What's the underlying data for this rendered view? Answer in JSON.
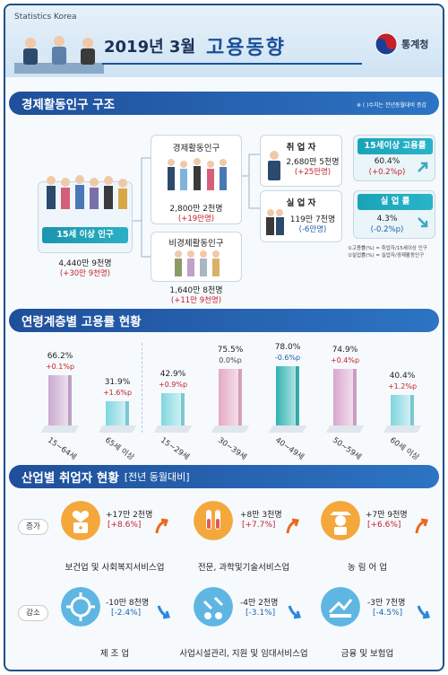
{
  "header": {
    "brand_small": "Statistics Korea",
    "year_month": "2019년 3월",
    "title": "고용동향",
    "agency": "통계청"
  },
  "section1": {
    "title": "경제활동인구 구조",
    "note": "※ ( )수치는 전년동월대비 증감",
    "pop15": {
      "label": "15세 이상 인구",
      "value": "4,440만 9천명",
      "change": "(+30만 9천명)"
    },
    "active": {
      "label": "경제활동인구",
      "value": "2,800만 2천명",
      "change": "(+19만명)"
    },
    "inactive": {
      "label": "비경제활동인구",
      "value": "1,640만 8천명",
      "change": "(+11만 9천명)"
    },
    "employed": {
      "label": "취 업 자",
      "value": "2,680만 5천명",
      "change": "(+25만명)"
    },
    "unemployed": {
      "label": "실 업 자",
      "value": "119만 7천명",
      "change": "(-6만명)"
    },
    "emp_rate": {
      "label": "15세이상 고용률",
      "value": "60.4%",
      "change": "(+0.2%p)"
    },
    "unemp_rate": {
      "label": "실 업 률",
      "value": "4.3%",
      "change": "(-0.2%p)"
    },
    "footnote1": "①고용률(%) = 취업자/15세이상 인구",
    "footnote2": "②실업률(%) = 실업자/경제활동인구"
  },
  "section2": {
    "title": "연령계층별 고용률 현황"
  },
  "chart_data": {
    "type": "bar",
    "categories": [
      "15~64세",
      "65세 이상",
      "15~29세",
      "30~39세",
      "40~49세",
      "50~59세",
      "60세 이상"
    ],
    "values": [
      66.2,
      31.9,
      42.9,
      75.5,
      78.0,
      74.9,
      40.4
    ],
    "value_labels": [
      "66.2%",
      "31.9%",
      "42.9%",
      "75.5%",
      "78.0%",
      "74.9%",
      "40.4%"
    ],
    "changes": [
      "+0.1%p",
      "+1.6%p",
      "+0.9%p",
      "0.0%p",
      "-0.6%p",
      "+0.4%p",
      "+1.2%p"
    ],
    "ylim": [
      0,
      100
    ],
    "colors": [
      "#c9a9cf",
      "#7fd6e0",
      "#7fd6e0",
      "#e3a9c4",
      "#2fb3b2",
      "#d9a6cf",
      "#7fd6e0"
    ]
  },
  "section3": {
    "title": "산업별 취업자 현황",
    "subtitle": "[전년 동월대비]",
    "increase_label": "증가",
    "decrease_label": "감소",
    "items": [
      {
        "name": "보건업 및 사회복지서비스업",
        "value": "+17만 2천명",
        "change": "[+8.6%]"
      },
      {
        "name": "전문, 과학및기술서비스업",
        "value": "+8만 3천명",
        "change": "[+7.7%]"
      },
      {
        "name": "농 림 어 업",
        "value": "+7만 9천명",
        "change": "[+6.6%]"
      },
      {
        "name": "제 조 업",
        "value": "-10만 8천명",
        "change": "[-2.4%]"
      },
      {
        "name": "사업시설관리, 지원 및 임대서비스업",
        "value": "-4만 2천명",
        "change": "[-3.1%]"
      },
      {
        "name": "금융 및 보험업",
        "value": "-3만 7천명",
        "change": "[-4.5%]"
      }
    ]
  },
  "colors": {
    "increase": "#c6202a",
    "decrease": "#1d61b0",
    "accent": "#1f4f9a"
  }
}
